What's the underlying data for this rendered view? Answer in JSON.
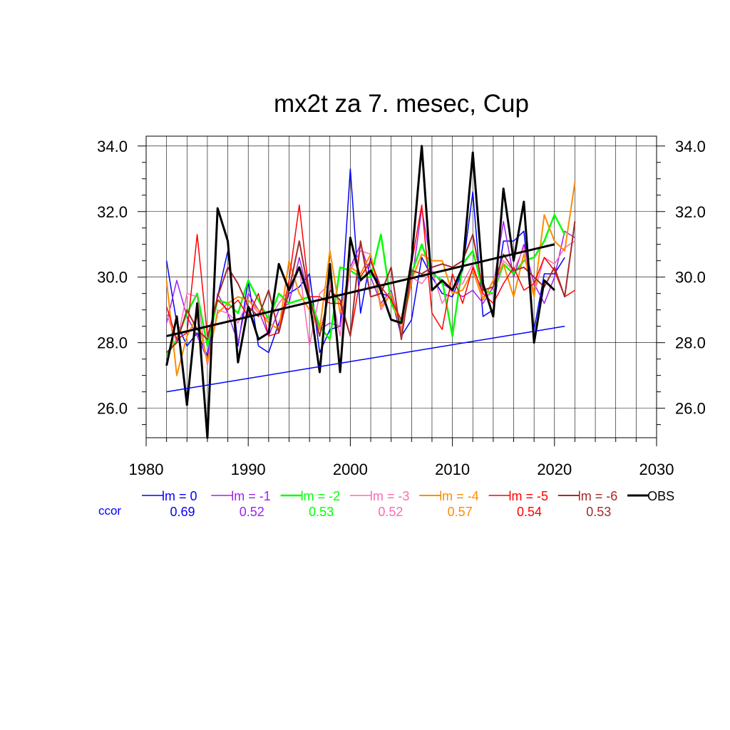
{
  "chart_data": {
    "type": "line",
    "title": "mx2t za 7. mesec, Cup",
    "xlabel": "",
    "ylabel": "",
    "xlim": [
      1980,
      2030
    ],
    "ylim": [
      25.1,
      34.3
    ],
    "x_ticks": [
      "1980",
      "1990",
      "2000",
      "2010",
      "2020",
      "2030"
    ],
    "y_ticks": [
      "26.0",
      "28.0",
      "30.0",
      "32.0",
      "34.0"
    ],
    "y_tick_values": [
      26,
      28,
      30,
      32,
      34
    ],
    "x_tick_values": [
      1980,
      1990,
      2000,
      2010,
      2020,
      2030
    ],
    "grid": true,
    "legend_position": "bottom",
    "ccor_label": "ccor",
    "x": [
      1982,
      1983,
      1984,
      1985,
      1986,
      1987,
      1988,
      1989,
      1990,
      1991,
      1992,
      1993,
      1994,
      1995,
      1996,
      1997,
      1998,
      1999,
      2000,
      2001,
      2002,
      2003,
      2004,
      2005,
      2006,
      2007,
      2008,
      2009,
      2010,
      2011,
      2012,
      2013,
      2014,
      2015,
      2016,
      2017,
      2018,
      2019,
      2020,
      2021,
      2022
    ],
    "series": [
      {
        "name": "lm = 0",
        "color": "#0000ff",
        "ccor": "0.69",
        "width": 1.5,
        "values": [
          30.5,
          28.6,
          27.9,
          28.3,
          27.6,
          29.4,
          30.8,
          27.9,
          29.9,
          27.9,
          27.7,
          28.6,
          29.5,
          29.7,
          30.1,
          27.7,
          28.4,
          28.5,
          33.3,
          28.9,
          30.6,
          29.5,
          29.4,
          28.2,
          28.7,
          30.6,
          30.0,
          29.5,
          29.4,
          30.2,
          32.6,
          28.8,
          29.0,
          31.1,
          31.1,
          31.4,
          28.4,
          30.1,
          30.1,
          30.6,
          null
        ]
      },
      {
        "name": "lm = -1",
        "color": "#a020f0",
        "ccor": "0.52",
        "width": 1.5,
        "values": [
          28.6,
          29.9,
          28.8,
          28.2,
          27.5,
          29.5,
          28.9,
          28.0,
          29.5,
          29.0,
          28.2,
          29.0,
          29.2,
          30.6,
          29.3,
          28.4,
          28.6,
          28.5,
          30.3,
          31.0,
          30.0,
          29.2,
          29.6,
          28.4,
          29.8,
          32.1,
          30.2,
          29.8,
          29.6,
          29.4,
          29.6,
          29.2,
          29.7,
          31.7,
          30.0,
          31.0,
          29.8,
          29.2,
          30.0,
          31.4,
          31.2
        ]
      },
      {
        "name": "lm = -2",
        "color": "#00ff00",
        "ccor": "0.53",
        "width": 2.5,
        "values": [
          27.6,
          28.1,
          28.9,
          29.5,
          27.9,
          29.3,
          29.2,
          28.9,
          29.9,
          29.3,
          28.7,
          29.5,
          29.2,
          29.3,
          29.4,
          28.5,
          28.1,
          30.3,
          30.2,
          30.0,
          30.0,
          31.3,
          29.2,
          28.6,
          30.1,
          31.0,
          30.1,
          29.9,
          28.2,
          30.4,
          30.8,
          29.6,
          29.5,
          30.4,
          30.1,
          30.5,
          30.6,
          31.1,
          31.9,
          31.3,
          null
        ]
      },
      {
        "name": "lm = -3",
        "color": "#ff69b4",
        "ccor": "0.52",
        "width": 1.5,
        "values": [
          28.9,
          28.0,
          29.5,
          29.4,
          27.3,
          29.0,
          28.9,
          28.6,
          29.3,
          28.9,
          28.7,
          29.2,
          29.6,
          30.3,
          27.9,
          29.5,
          29.8,
          28.2,
          30.2,
          30.8,
          30.7,
          29.0,
          29.5,
          28.4,
          30.0,
          29.8,
          30.2,
          29.2,
          29.7,
          29.8,
          30.4,
          29.4,
          29.5,
          30.5,
          30.2,
          30.9,
          29.5,
          30.6,
          30.4,
          30.9,
          31.1
        ]
      },
      {
        "name": "lm = -4",
        "color": "#ff8c00",
        "ccor": "0.57",
        "width": 2.0,
        "values": [
          29.9,
          27.0,
          28.2,
          28.8,
          27.4,
          28.9,
          29.2,
          29.4,
          29.3,
          29.0,
          28.6,
          28.4,
          30.5,
          29.5,
          29.0,
          28.4,
          30.8,
          28.9,
          30.3,
          30.1,
          30.7,
          29.1,
          29.5,
          28.3,
          29.9,
          30.7,
          30.5,
          30.5,
          29.5,
          29.6,
          30.2,
          29.3,
          29.9,
          30.4,
          29.4,
          30.7,
          29.4,
          31.9,
          31.1,
          30.8,
          32.9
        ]
      },
      {
        "name": "lm = -5",
        "color": "#ff0000",
        "ccor": "0.54",
        "width": 1.5,
        "values": [
          29.1,
          28.1,
          28.3,
          31.3,
          28.2,
          29.3,
          29.0,
          29.3,
          28.8,
          29.5,
          28.2,
          28.3,
          29.9,
          32.2,
          29.4,
          29.4,
          29.2,
          29.2,
          28.2,
          30.0,
          30.5,
          29.7,
          29.3,
          28.7,
          30.4,
          32.2,
          28.9,
          28.4,
          30.1,
          29.2,
          30.3,
          29.5,
          29.2,
          29.8,
          30.3,
          29.6,
          29.8,
          30.6,
          30.2,
          29.4,
          29.6
        ]
      },
      {
        "name": "lm = -6",
        "color": "#a52a2a",
        "ccor": "0.53",
        "width": 2.0,
        "values": [
          27.7,
          28.0,
          29.0,
          28.4,
          28.1,
          29.4,
          30.3,
          29.8,
          29.1,
          28.8,
          29.6,
          28.3,
          29.6,
          31.1,
          29.4,
          28.2,
          29.6,
          29.3,
          28.2,
          31.1,
          29.4,
          29.5,
          30.3,
          28.1,
          30.2,
          30.1,
          30.3,
          30.4,
          30.3,
          30.5,
          31.3,
          29.6,
          29.7,
          30.7,
          30.2,
          30.3,
          30.0,
          29.7,
          30.3,
          29.4,
          31.7
        ]
      },
      {
        "name": "OBS",
        "color": "#000000",
        "ccor": "",
        "width": 3.0,
        "values": [
          27.3,
          28.8,
          26.1,
          29.2,
          25.1,
          32.1,
          31.1,
          27.4,
          29.1,
          28.1,
          28.3,
          30.4,
          29.6,
          30.3,
          29.3,
          27.1,
          30.4,
          27.1,
          31.2,
          29.9,
          30.2,
          29.6,
          28.7,
          28.6,
          30.5,
          34.0,
          29.6,
          29.9,
          29.6,
          30.3,
          33.8,
          29.8,
          28.8,
          32.7,
          30.5,
          32.3,
          28.0,
          29.9,
          29.6,
          null,
          null
        ]
      }
    ],
    "trend_lines": [
      {
        "series": "OBS",
        "color": "#000000",
        "x": [
          1982,
          2020
        ],
        "y": [
          28.2,
          31.0
        ]
      },
      {
        "series": "lm = 0",
        "color": "#0000ff",
        "x": [
          1982,
          2021
        ],
        "y": [
          26.5,
          28.5
        ]
      }
    ]
  }
}
